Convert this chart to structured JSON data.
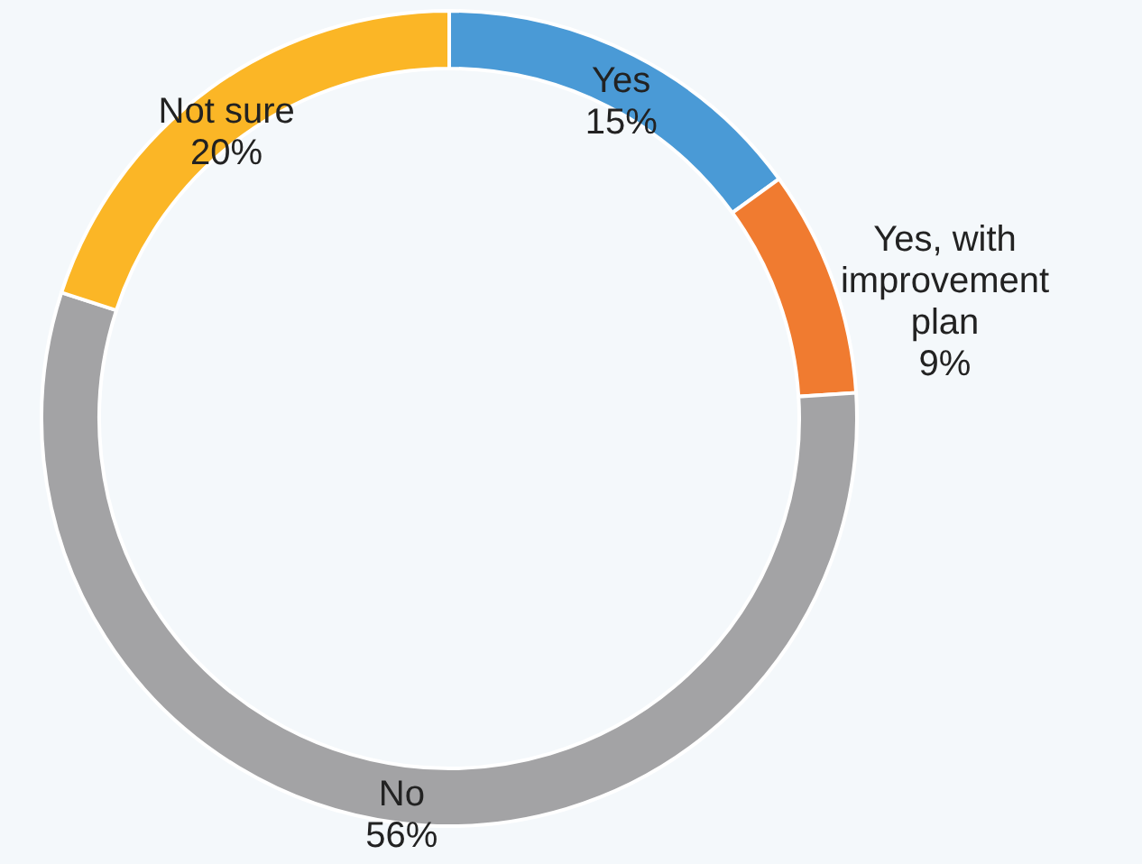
{
  "chart_data": {
    "type": "donut",
    "categories": [
      "Yes",
      "Yes, with improvement plan",
      "No",
      "Not sure"
    ],
    "values": [
      15,
      9,
      56,
      20
    ],
    "colors": [
      "#4a9ad6",
      "#f07b30",
      "#a3a3a5",
      "#fbb626"
    ],
    "value_labels": [
      "15%",
      "9%",
      "56%",
      "20%"
    ]
  }
}
